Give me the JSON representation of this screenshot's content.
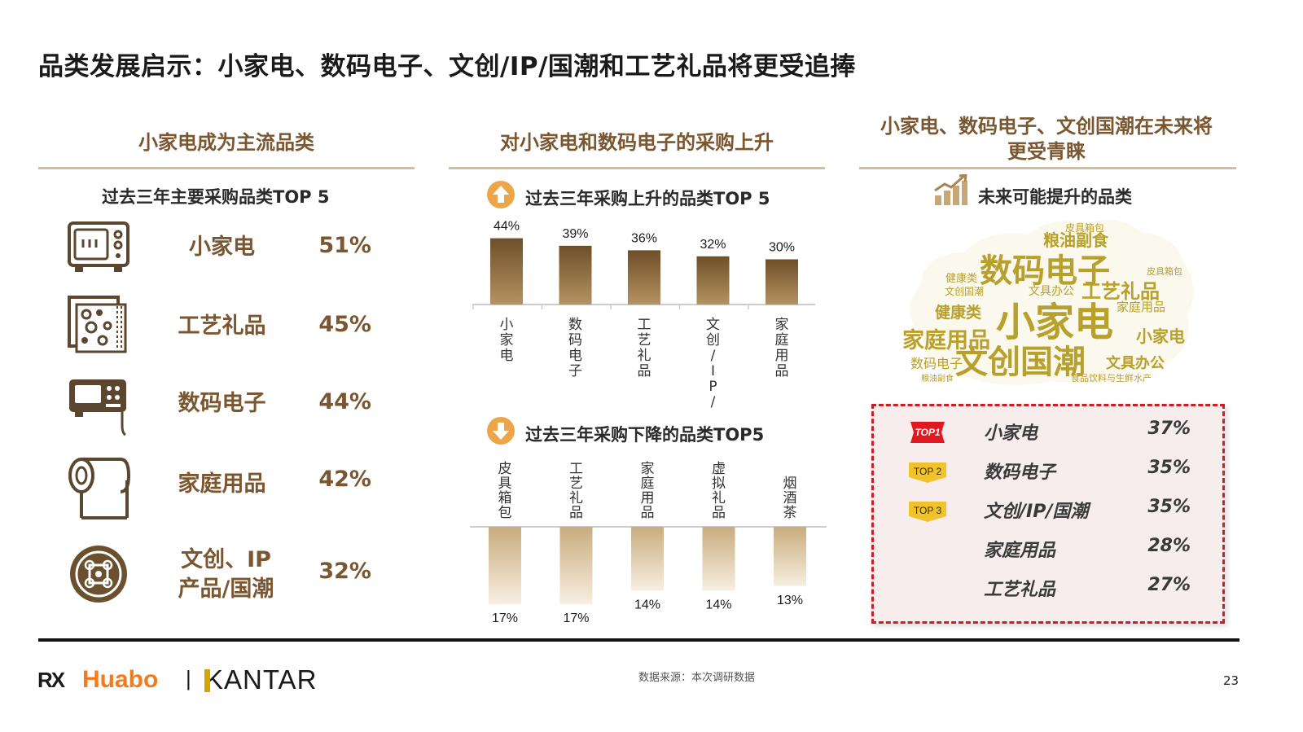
{
  "title": "品类发展启示：小家电、数码电子、文创/IP/国潮和工艺礼品将更受追捧",
  "left": {
    "header": "小家电成为主流品类",
    "subtitle": "过去三年主要采购品类TOP 5",
    "items": [
      {
        "name": "小家电",
        "pct": "51%",
        "icon": "microwave-icon"
      },
      {
        "name": "工艺礼品",
        "pct": "45%",
        "icon": "gift-pattern-icon"
      },
      {
        "name": "数码电子",
        "pct": "44%",
        "icon": "digital-device-icon"
      },
      {
        "name": "家庭用品",
        "pct": "42%",
        "icon": "paper-roll-icon"
      },
      {
        "name": "文创、IP\n产品/国潮",
        "pct": "32%",
        "icon": "chinese-knot-icon"
      }
    ]
  },
  "middle": {
    "header": "对小家电和数码电子的采购上升",
    "up_subtitle": "过去三年采购上升的品类TOP 5",
    "down_subtitle": "过去三年采购下降的品类TOP5"
  },
  "chart_data": [
    {
      "type": "bar",
      "title": "过去三年采购上升的品类TOP 5",
      "categories": [
        "小家电",
        "数码电子",
        "工艺礼品",
        "文创/IP/国潮",
        "家庭用品"
      ],
      "values": [
        44,
        39,
        36,
        32,
        30
      ],
      "value_labels": [
        "44%",
        "39%",
        "36%",
        "32%",
        "30%"
      ],
      "direction": "up",
      "color": "#7a5a2f"
    },
    {
      "type": "bar",
      "title": "过去三年采购下降的品类TOP5",
      "categories": [
        "皮具箱包",
        "工艺礼品",
        "家庭用品",
        "虚拟礼品",
        "烟酒茶"
      ],
      "values": [
        17,
        17,
        14,
        14,
        13
      ],
      "value_labels": [
        "17%",
        "17%",
        "14%",
        "14%",
        "13%"
      ],
      "direction": "down",
      "color": "#d9c3a0"
    }
  ],
  "right": {
    "header": "小家电、数码电子、文创国潮在未来将更受青睐",
    "subtitle": "未来可能提升的品类",
    "wordcloud": [
      {
        "w": "小家电"
      },
      {
        "w": "数码电子"
      },
      {
        "w": "文创国潮"
      },
      {
        "w": "家庭用品"
      },
      {
        "w": "工艺礼品"
      },
      {
        "w": "健康类"
      },
      {
        "w": "粮油副食"
      },
      {
        "w": "文具办公"
      },
      {
        "w": "皮具箱包"
      },
      {
        "w": "食品饮料与生鲜水产"
      },
      {
        "w": "健康类"
      },
      {
        "w": "文创国潮"
      },
      {
        "w": "家庭用品"
      },
      {
        "w": "小家电"
      },
      {
        "w": "文具办公"
      },
      {
        "w": "数码电子"
      },
      {
        "w": "粮油副食"
      },
      {
        "w": "皮具箱包"
      }
    ],
    "ranks": [
      {
        "badge": "TOP1",
        "name": "小家电",
        "pct": "37%"
      },
      {
        "badge": "TOP 2",
        "name": "数码电子",
        "pct": "35%"
      },
      {
        "badge": "TOP 3",
        "name": "文创/IP/国潮",
        "pct": "35%"
      },
      {
        "badge": "",
        "name": "家庭用品",
        "pct": "28%"
      },
      {
        "badge": "",
        "name": "工艺礼品",
        "pct": "27%"
      }
    ]
  },
  "footer": {
    "logo1_mark": "RX",
    "logo1_text": "Huabo",
    "separator": "|",
    "logo2": "KANTAR",
    "source": "数据来源：本次调研数据",
    "page": "23"
  },
  "colors": {
    "brand_brown": "#7a5730",
    "rule_tan": "#d3bd9b",
    "huabo_orange": "#f07c1f",
    "dashed_red": "#c81e28",
    "panel_pink": "#f7eded"
  }
}
